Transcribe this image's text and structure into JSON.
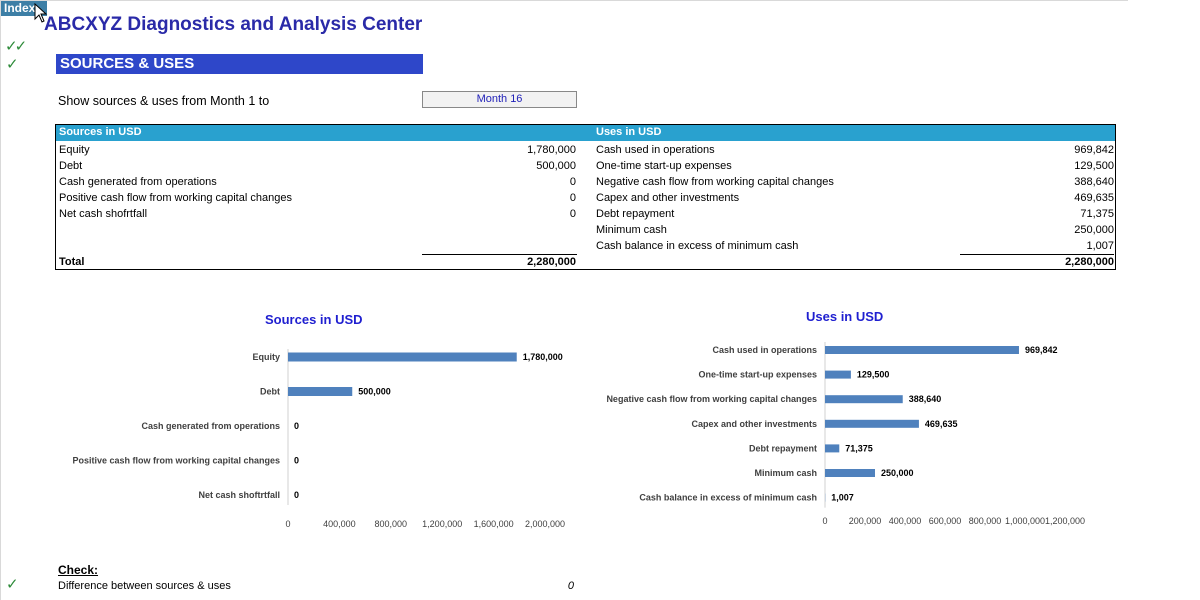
{
  "nav": {
    "index_label": "Index"
  },
  "app_title": "ABCXYZ Diagnostics and Analysis Center",
  "section_title": "SOURCES & USES",
  "filter": {
    "label": "Show sources & uses from Month 1 to",
    "selected": "Month 16"
  },
  "table": {
    "sources_header": "Sources in USD",
    "uses_header": "Uses in USD",
    "sources": [
      {
        "label": "Equity",
        "value": "1,780,000"
      },
      {
        "label": "Debt",
        "value": "500,000"
      },
      {
        "label": "Cash generated from operations",
        "value": "0"
      },
      {
        "label": "Positive cash flow from working capital changes",
        "value": "0"
      },
      {
        "label": "Net cash shofrtfall",
        "value": "0"
      }
    ],
    "uses": [
      {
        "label": "Cash used in operations",
        "value": "969,842"
      },
      {
        "label": "One-time start-up expenses",
        "value": "129,500"
      },
      {
        "label": "Negative cash flow from working capital changes",
        "value": "388,640"
      },
      {
        "label": "Capex and other investments",
        "value": "469,635"
      },
      {
        "label": "Debt repayment",
        "value": "71,375"
      },
      {
        "label": "Minimum cash",
        "value": "250,000"
      },
      {
        "label": "Cash balance in excess of minimum cash",
        "value": "1,007"
      }
    ],
    "total_label": "Total",
    "sources_total": "2,280,000",
    "uses_total": "2,280,000"
  },
  "chart_data": [
    {
      "type": "bar",
      "orientation": "horizontal",
      "title": "Sources in USD",
      "categories": [
        "Equity",
        "Debt",
        "Cash generated from operations",
        "Positive cash flow from working capital changes",
        "Net cash shoftrtfall"
      ],
      "values": [
        1780000,
        500000,
        0,
        0,
        0
      ],
      "data_labels": [
        "1,780,000",
        "500,000",
        "0",
        "0",
        "0"
      ],
      "x_ticks": [
        "0",
        "400,000",
        "800,000",
        "1,200,000",
        "1,600,000",
        "2,000,000"
      ],
      "xlim": [
        0,
        2000000
      ],
      "grid": false,
      "color": "#4f81bd"
    },
    {
      "type": "bar",
      "orientation": "horizontal",
      "title": "Uses in USD",
      "categories": [
        "Cash used in operations",
        "One-time start-up expenses",
        "Negative cash flow from working capital changes",
        "Capex and other investments",
        "Debt repayment",
        "Minimum cash",
        "Cash balance in excess of minimum cash"
      ],
      "values": [
        969842,
        129500,
        388640,
        469635,
        71375,
        250000,
        1007
      ],
      "data_labels": [
        "969,842",
        "129,500",
        "388,640",
        "469,635",
        "71,375",
        "250,000",
        "1,007"
      ],
      "x_ticks": [
        "0",
        "200,000",
        "400,000",
        "600,000",
        "800,000",
        "1,000,000",
        "1,200,000"
      ],
      "xlim": [
        0,
        1200000
      ],
      "grid": false,
      "color": "#4f81bd"
    }
  ],
  "check": {
    "label": "Check:",
    "difference_label": "Difference between sources & uses",
    "difference_value": "0"
  },
  "colors": {
    "accent_blue": "#2e47c9",
    "header_cyan": "#29a1cf",
    "title_blue": "#2a2aa8",
    "check_green": "#2e8b3a"
  }
}
